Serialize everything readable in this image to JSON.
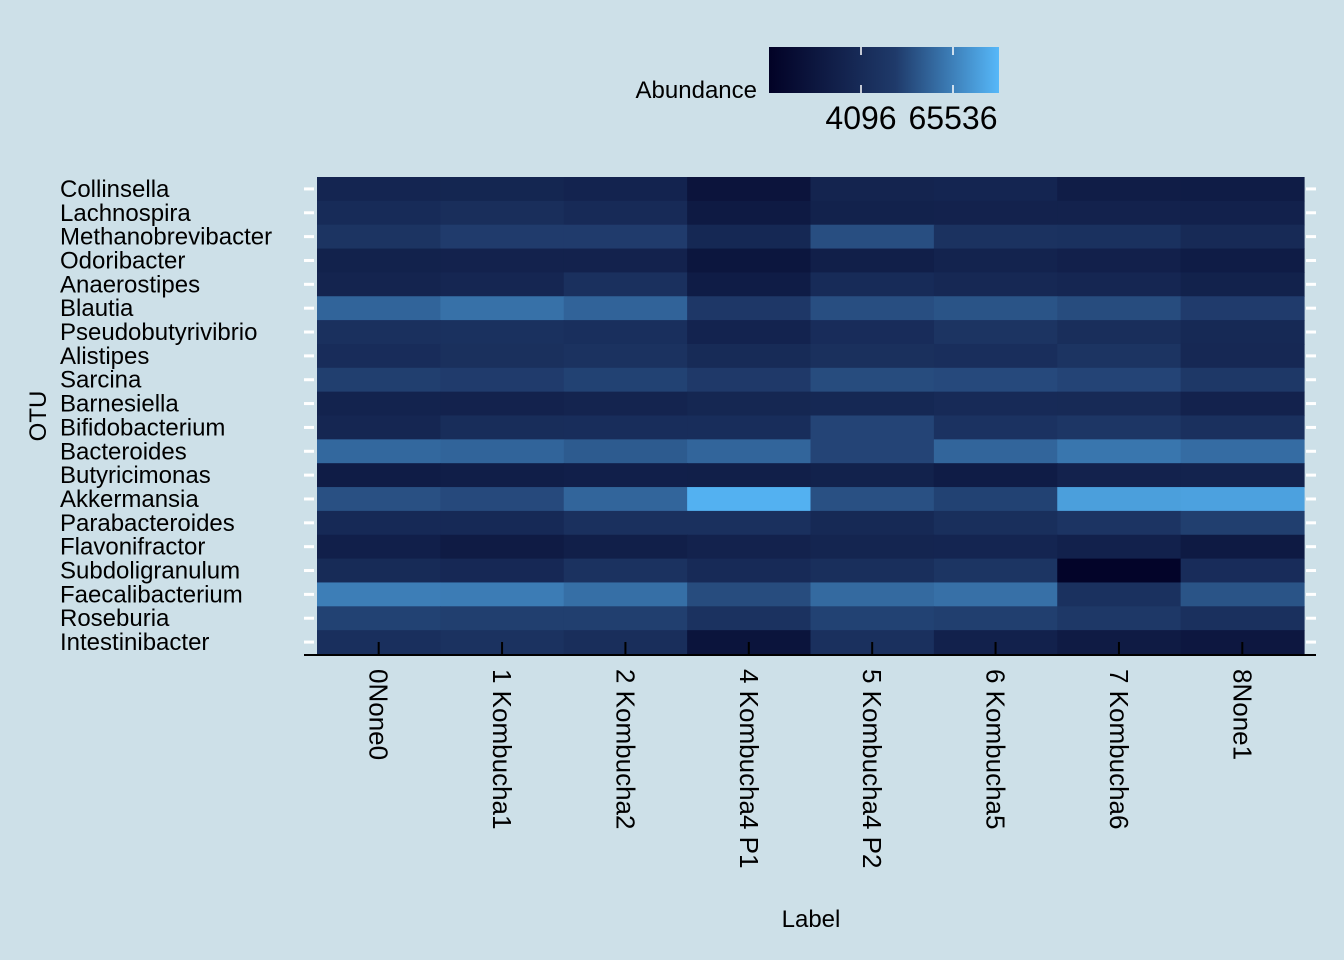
{
  "chart_data": {
    "type": "heatmap",
    "xlabel": "Label",
    "ylabel": "OTU",
    "legend": {
      "title": "Abundance",
      "position": "top",
      "scale": "log",
      "tick_labels": [
        "4096",
        "65536"
      ],
      "ticks": [
        4096,
        65536
      ],
      "range": [
        256,
        262144
      ],
      "color_low": "#020226",
      "color_high": "#56b8f9"
    },
    "x": [
      "0None0",
      "1 Kombucha1",
      "2 Kombucha2",
      "4 Kombucha4 P1",
      "5 Kombucha4 P2",
      "6 Kombucha5",
      "7 Kombucha6",
      "8None1"
    ],
    "y": [
      "Collinsella",
      "Lachnospira",
      "Methanobrevibacter",
      "Odoribacter",
      "Anaerostipes",
      "Blautia",
      "Pseudobutyrivibrio",
      "Alistipes",
      "Sarcina",
      "Barnesiella",
      "Bifidobacterium",
      "Bacteroides",
      "Butyricimonas",
      "Akkermansia",
      "Parabacteroides",
      "Flavonifractor",
      "Subdoligranulum",
      "Faecalibacterium",
      "Roseburia",
      "Intestinibacter"
    ],
    "values": [
      [
        2800,
        2900,
        2500,
        900,
        2600,
        2800,
        1600,
        1500
      ],
      [
        4200,
        5000,
        3900,
        1300,
        2200,
        2300,
        2300,
        2100
      ],
      [
        7500,
        12000,
        12000,
        3300,
        19000,
        6800,
        6200,
        3800
      ],
      [
        2200,
        2300,
        2300,
        1000,
        1800,
        2400,
        2000,
        1500
      ],
      [
        2600,
        3000,
        6000,
        1500,
        4300,
        3400,
        3000,
        2200
      ],
      [
        33000,
        45000,
        32000,
        9600,
        19000,
        22000,
        18000,
        12000
      ],
      [
        6000,
        6200,
        5600,
        2500,
        4600,
        7600,
        5000,
        3600
      ],
      [
        4600,
        5700,
        6700,
        4100,
        5700,
        5200,
        7500,
        3400
      ],
      [
        13000,
        12000,
        14000,
        11000,
        18000,
        17000,
        15000,
        10000
      ],
      [
        2400,
        2300,
        2600,
        3100,
        3300,
        4000,
        3800,
        2300
      ],
      [
        3000,
        4700,
        4900,
        4900,
        15000,
        6900,
        9000,
        5900
      ],
      [
        36000,
        33000,
        26000,
        34000,
        15000,
        34000,
        51000,
        40000
      ],
      [
        1500,
        1700,
        1900,
        1800,
        2200,
        1500,
        2300,
        2400
      ],
      [
        20000,
        17000,
        34000,
        220000,
        20000,
        14000,
        140000,
        150000
      ],
      [
        3700,
        3700,
        5800,
        5900,
        3600,
        5400,
        7800,
        13000
      ],
      [
        1900,
        1400,
        1800,
        2300,
        2700,
        2800,
        2100,
        1300
      ],
      [
        4100,
        3500,
        6700,
        3900,
        5300,
        8000,
        300,
        4600
      ],
      [
        62000,
        59000,
        43000,
        18000,
        38000,
        44000,
        6300,
        22000
      ],
      [
        14000,
        13000,
        13000,
        6800,
        14000,
        13000,
        9900,
        6000
      ],
      [
        5600,
        6700,
        5000,
        860,
        6000,
        2100,
        1400,
        1100
      ]
    ]
  }
}
